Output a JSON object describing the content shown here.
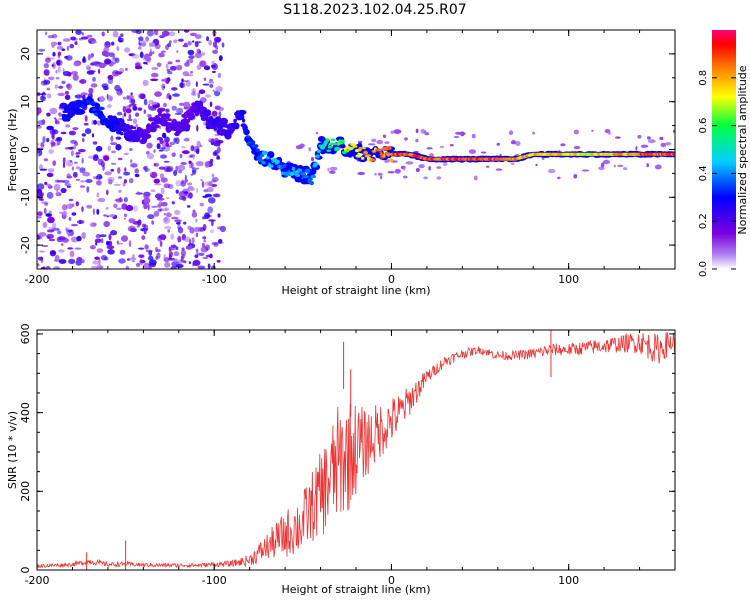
{
  "figure_title": "S118.2023.102.04.25.R07",
  "chart_data": [
    {
      "type": "heatmap",
      "title": "",
      "xlabel": "Height of straight line (km)",
      "ylabel": "Frequency (Hz)",
      "xlim": [
        -200,
        160
      ],
      "ylim": [
        -25,
        25
      ],
      "xticks": [
        -200,
        -100,
        0,
        100
      ],
      "yticks": [
        -20,
        -10,
        0,
        10,
        20
      ],
      "colorbar": {
        "label": "Normalized spectral amplitude",
        "range": [
          0.0,
          1.0
        ],
        "ticks": [
          0.0,
          0.2,
          0.4,
          0.6,
          0.8
        ],
        "colormap": [
          "#ffffff",
          "#7a00e0",
          "#0000ff",
          "#00d0ff",
          "#00ff40",
          "#ffff00",
          "#ff8000",
          "#ff0000",
          "#ff0080"
        ]
      },
      "ridge": {
        "description_values": "dominant frequency track",
        "x": [
          -180,
          -170,
          -160,
          -150,
          -140,
          -130,
          -120,
          -110,
          -100,
          -90,
          -85,
          -80,
          -75,
          -70,
          -65,
          -60,
          -55,
          -50,
          -45,
          -40,
          -35,
          -30,
          -25,
          -20,
          -15,
          -10,
          -5,
          0,
          10,
          20,
          30,
          40,
          50,
          60,
          70,
          80,
          90,
          100,
          110,
          120,
          130,
          140,
          150,
          160
        ],
        "y": [
          8,
          10,
          6,
          4,
          3,
          7,
          4,
          9,
          5,
          4,
          8,
          2,
          -1,
          -2,
          -3,
          -4,
          -5,
          -5,
          -6,
          1,
          1,
          1,
          0,
          0,
          -1,
          -1,
          -1,
          -1,
          -1,
          -2,
          -2,
          -2,
          -2,
          -2,
          -2,
          -1,
          -1,
          -1,
          -1,
          -1,
          -1,
          -1,
          -1,
          -1
        ],
        "amplitude": [
          0.3,
          0.35,
          0.3,
          0.25,
          0.2,
          0.2,
          0.2,
          0.2,
          0.25,
          0.25,
          0.3,
          0.35,
          0.4,
          0.45,
          0.45,
          0.4,
          0.45,
          0.4,
          0.4,
          0.5,
          0.6,
          0.6,
          0.7,
          0.75,
          0.8,
          0.85,
          0.85,
          0.9,
          0.9,
          0.95,
          0.95,
          0.95,
          0.95,
          0.95,
          0.85,
          0.8,
          0.8,
          0.8,
          0.75,
          0.8,
          0.85,
          0.9,
          0.95,
          0.9
        ]
      },
      "colors": {
        "axis": "#000000"
      }
    },
    {
      "type": "line",
      "title": "",
      "xlabel": "Height of straight line (km)",
      "ylabel": "SNR (10 * v/v)",
      "xlim": [
        -200,
        160
      ],
      "ylim": [
        0,
        610
      ],
      "xticks": [
        -200,
        -100,
        0,
        100
      ],
      "yticks": [
        0,
        200,
        400,
        600
      ],
      "series": [
        {
          "color": "#ee3333",
          "x": [
            -200,
            -190,
            -180,
            -170,
            -160,
            -150,
            -140,
            -130,
            -120,
            -110,
            -100,
            -90,
            -80,
            -70,
            -60,
            -50,
            -45,
            -40,
            -35,
            -30,
            -25,
            -20,
            -15,
            -10,
            -5,
            0,
            5,
            10,
            15,
            20,
            25,
            30,
            40,
            50,
            60,
            70,
            80,
            90,
            100,
            110,
            120,
            130,
            140,
            150,
            158
          ],
          "y": [
            10,
            12,
            14,
            22,
            14,
            15,
            13,
            12,
            12,
            12,
            14,
            16,
            25,
            60,
            90,
            120,
            160,
            190,
            230,
            270,
            290,
            310,
            320,
            340,
            360,
            380,
            400,
            430,
            460,
            490,
            510,
            530,
            550,
            560,
            545,
            545,
            550,
            560,
            560,
            565,
            570,
            575,
            580,
            560,
            580
          ],
          "noise": [
            5,
            5,
            5,
            8,
            6,
            6,
            5,
            5,
            5,
            5,
            6,
            8,
            15,
            35,
            60,
            80,
            90,
            110,
            130,
            150,
            150,
            120,
            90,
            80,
            70,
            60,
            50,
            40,
            30,
            20,
            15,
            15,
            12,
            10,
            12,
            12,
            14,
            16,
            16,
            18,
            20,
            22,
            30,
            40,
            30
          ],
          "spikes": [
            {
              "x": -150,
              "y": 75
            },
            {
              "x": -172,
              "y": 45
            },
            {
              "x": -27,
              "y": 580
            },
            {
              "x": -23,
              "y": 510
            },
            {
              "x": 90,
              "y": 610
            }
          ]
        }
      ]
    }
  ]
}
